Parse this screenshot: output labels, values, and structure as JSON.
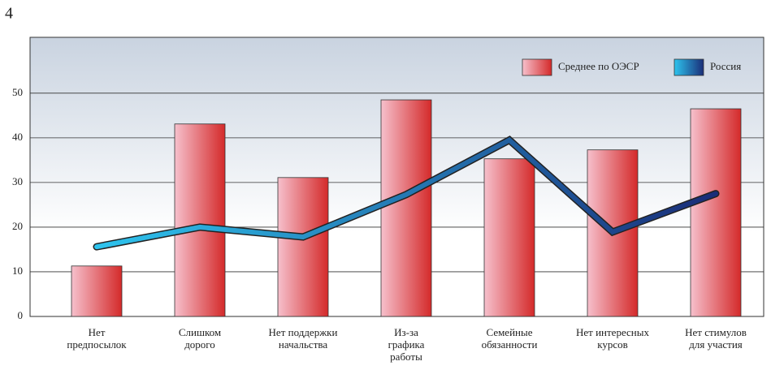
{
  "chart_data": {
    "type": "bar_line",
    "title": "4",
    "categories": [
      "Нет\nпредпосылок",
      "Слишком\nдорого",
      "Нет поддержки\nначальства",
      "Из-за\nграфика\nработы",
      "Семейные\nобязанности",
      "Нет интересных\nкурсов",
      "Нет стимулов\nдля участия"
    ],
    "series": [
      {
        "name": "Среднее по ОЭСР",
        "type": "bar",
        "color": "#d62b2b",
        "values": [
          11.3,
          43.1,
          31.1,
          48.5,
          35.3,
          37.3,
          46.5
        ]
      },
      {
        "name": "Россия",
        "type": "line",
        "color": "#1a3a80",
        "values": [
          15.6,
          20,
          17.8,
          27.3,
          39.5,
          18.9,
          27.5
        ]
      }
    ],
    "ylim": [
      0,
      62.5
    ],
    "yticks": [
      0,
      10,
      20,
      30,
      40,
      50
    ],
    "grid": true,
    "legend": "top-right"
  }
}
